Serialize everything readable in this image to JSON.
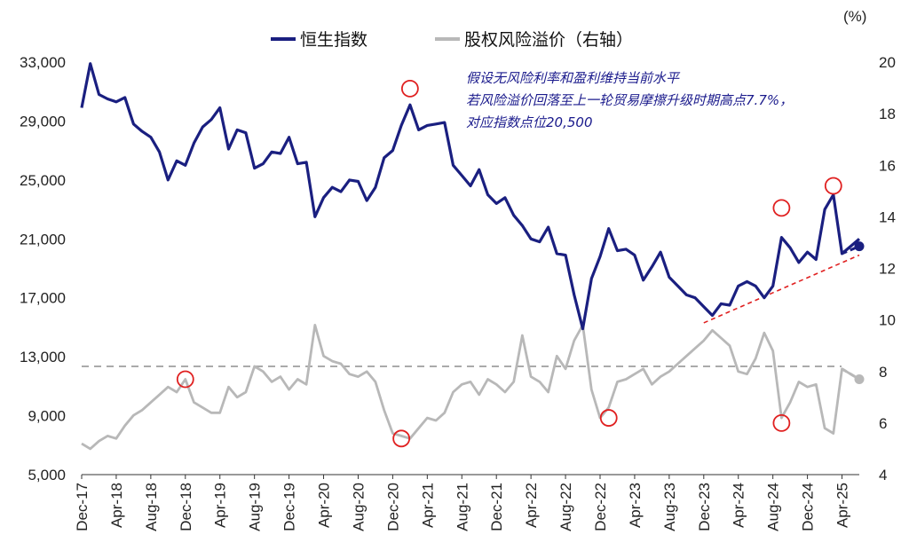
{
  "chart_data": {
    "type": "line",
    "right_unit": "(%)",
    "legend": [
      "恒生指数",
      "股权风险溢价（右轴）"
    ],
    "series": [
      {
        "name": "恒生指数",
        "axis": "left",
        "color": "#1a1f80",
        "x": [
          "2017-12",
          "2018-01",
          "2018-02",
          "2018-03",
          "2018-04",
          "2018-05",
          "2018-06",
          "2018-07",
          "2018-08",
          "2018-09",
          "2018-10",
          "2018-11",
          "2018-12",
          "2019-01",
          "2019-02",
          "2019-03",
          "2019-04",
          "2019-05",
          "2019-06",
          "2019-07",
          "2019-08",
          "2019-09",
          "2019-10",
          "2019-11",
          "2019-12",
          "2020-01",
          "2020-02",
          "2020-03",
          "2020-04",
          "2020-05",
          "2020-06",
          "2020-07",
          "2020-08",
          "2020-09",
          "2020-10",
          "2020-11",
          "2020-12",
          "2021-01",
          "2021-02",
          "2021-03",
          "2021-04",
          "2021-05",
          "2021-06",
          "2021-07",
          "2021-08",
          "2021-09",
          "2021-10",
          "2021-11",
          "2021-12",
          "2022-01",
          "2022-02",
          "2022-03",
          "2022-04",
          "2022-05",
          "2022-06",
          "2022-07",
          "2022-08",
          "2022-09",
          "2022-10",
          "2022-11",
          "2022-12",
          "2023-01",
          "2023-02",
          "2023-03",
          "2023-04",
          "2023-05",
          "2023-06",
          "2023-07",
          "2023-08",
          "2023-09",
          "2023-10",
          "2023-11",
          "2023-12",
          "2024-01",
          "2024-02",
          "2024-03",
          "2024-04",
          "2024-05",
          "2024-06",
          "2024-07",
          "2024-08",
          "2024-09",
          "2024-10",
          "2024-11",
          "2024-12",
          "2025-01",
          "2025-02",
          "2025-03",
          "2025-04",
          "2025-05",
          "2025-06"
        ],
        "values": [
          29900,
          32900,
          30800,
          30500,
          30300,
          30600,
          28800,
          28300,
          27900,
          26900,
          25000,
          26300,
          26000,
          27500,
          28600,
          29100,
          29900,
          27100,
          28400,
          28200,
          25800,
          26100,
          26900,
          26800,
          27900,
          26100,
          26200,
          22500,
          23800,
          24500,
          24200,
          25000,
          24900,
          23600,
          24500,
          26500,
          27000,
          28700,
          30100,
          28400,
          28700,
          28800,
          28900,
          26000,
          25300,
          24600,
          25700,
          24000,
          23400,
          23800,
          22600,
          21900,
          21000,
          20800,
          21800,
          20000,
          19900,
          17200,
          14900,
          18300,
          19800,
          21700,
          20200,
          20300,
          19900,
          18200,
          19100,
          20100,
          18400,
          17800,
          17200,
          17000,
          16400,
          15800,
          16600,
          16500,
          17800,
          18100,
          17800,
          17000,
          17800,
          21100,
          20400,
          19400,
          20100,
          19600,
          23000,
          24000,
          20000,
          20500,
          21000
        ]
      },
      {
        "name": "股权风险溢价（右轴）",
        "axis": "right",
        "color": "#b8b8b8",
        "x": [
          "2017-12",
          "2018-01",
          "2018-02",
          "2018-03",
          "2018-04",
          "2018-05",
          "2018-06",
          "2018-07",
          "2018-08",
          "2018-09",
          "2018-10",
          "2018-11",
          "2018-12",
          "2019-01",
          "2019-02",
          "2019-03",
          "2019-04",
          "2019-05",
          "2019-06",
          "2019-07",
          "2019-08",
          "2019-09",
          "2019-10",
          "2019-11",
          "2019-12",
          "2020-01",
          "2020-02",
          "2020-03",
          "2020-04",
          "2020-05",
          "2020-06",
          "2020-07",
          "2020-08",
          "2020-09",
          "2020-10",
          "2020-11",
          "2020-12",
          "2021-01",
          "2021-02",
          "2021-03",
          "2021-04",
          "2021-05",
          "2021-06",
          "2021-07",
          "2021-08",
          "2021-09",
          "2021-10",
          "2021-11",
          "2021-12",
          "2022-01",
          "2022-02",
          "2022-03",
          "2022-04",
          "2022-05",
          "2022-06",
          "2022-07",
          "2022-08",
          "2022-09",
          "2022-10",
          "2022-11",
          "2022-12",
          "2023-01",
          "2023-02",
          "2023-03",
          "2023-04",
          "2023-05",
          "2023-06",
          "2023-07",
          "2023-08",
          "2023-09",
          "2023-10",
          "2023-11",
          "2023-12",
          "2024-01",
          "2024-02",
          "2024-03",
          "2024-04",
          "2024-05",
          "2024-06",
          "2024-07",
          "2024-08",
          "2024-09",
          "2024-10",
          "2024-11",
          "2024-12",
          "2025-01",
          "2025-02",
          "2025-03",
          "2025-04",
          "2025-05",
          "2025-06"
        ],
        "values": [
          5.2,
          5.0,
          5.3,
          5.5,
          5.4,
          5.9,
          6.3,
          6.5,
          6.8,
          7.1,
          7.4,
          7.2,
          7.7,
          6.8,
          6.6,
          6.4,
          6.4,
          7.4,
          7.0,
          7.2,
          8.2,
          8.0,
          7.6,
          7.8,
          7.3,
          7.7,
          7.5,
          9.8,
          8.6,
          8.4,
          8.3,
          7.9,
          7.8,
          8.0,
          7.6,
          6.5,
          5.6,
          5.5,
          5.4,
          5.8,
          6.2,
          6.1,
          6.4,
          7.2,
          7.5,
          7.6,
          7.1,
          7.7,
          7.5,
          7.2,
          7.6,
          9.4,
          7.8,
          7.6,
          7.2,
          8.6,
          8.1,
          9.2,
          9.8,
          7.3,
          6.2,
          6.6,
          7.6,
          7.7,
          7.9,
          8.1,
          7.5,
          7.8,
          8.0,
          8.3,
          8.6,
          8.9,
          9.2,
          9.6,
          9.3,
          9.0,
          8.0,
          7.9,
          8.5,
          9.5,
          8.8,
          6.2,
          6.8,
          7.6,
          7.4,
          7.5,
          5.8,
          5.6,
          8.1,
          7.9,
          7.7
        ]
      }
    ],
    "left_axis": {
      "ticks": [
        "5,000",
        "9,000",
        "13,000",
        "17,000",
        "21,000",
        "25,000",
        "29,000",
        "33,000"
      ],
      "ylim": [
        5000,
        33000
      ]
    },
    "right_axis": {
      "ticks": [
        "4",
        "6",
        "8",
        "10",
        "12",
        "14",
        "16",
        "18",
        "20"
      ],
      "ylim": [
        4,
        20
      ]
    },
    "x_ticks": [
      "Dec-17",
      "Apr-18",
      "Aug-18",
      "Dec-18",
      "Apr-19",
      "Aug-19",
      "Dec-19",
      "Apr-20",
      "Aug-20",
      "Dec-20",
      "Apr-21",
      "Aug-21",
      "Dec-21",
      "Apr-22",
      "Aug-22",
      "Dec-22",
      "Apr-23",
      "Aug-23",
      "Dec-23",
      "Apr-24",
      "Aug-24",
      "Dec-24",
      "Apr-25"
    ],
    "reference_line": {
      "value": 8.2,
      "axis": "right",
      "style": "dashed",
      "color": "#aaaaaa"
    },
    "trend_line": {
      "from": [
        "2023-12",
        15300
      ],
      "to": [
        "2025-06",
        19900
      ],
      "axis": "left",
      "style": "dashed",
      "color": "#e02020"
    },
    "projections": [
      {
        "series": "恒生指数",
        "from": [
          "2025-04",
          20000
        ],
        "to": [
          "2025-06",
          20500
        ],
        "axis": "left"
      },
      {
        "series": "股权风险溢价（右轴）",
        "from": [
          "2025-04",
          8.1
        ],
        "to": [
          "2025-06",
          7.7
        ],
        "axis": "right"
      }
    ],
    "highlight_circles": [
      {
        "x": "2021-02",
        "y": 31200,
        "axis": "left"
      },
      {
        "x": "2024-09",
        "y": 23100,
        "axis": "left"
      },
      {
        "x": "2025-03",
        "y": 24600,
        "axis": "left"
      },
      {
        "x": "2018-12",
        "y": 7.7,
        "axis": "right"
      },
      {
        "x": "2021-01",
        "y": 5.4,
        "axis": "right"
      },
      {
        "x": "2023-01",
        "y": 6.2,
        "axis": "right"
      },
      {
        "x": "2024-09",
        "y": 6.0,
        "axis": "right"
      }
    ],
    "annotation": [
      "假设无风险利率和盈利维持当前水平",
      "若风险溢价回落至上一轮贸易摩擦升级时期高点7.7%，",
      "对应指数点位20,500"
    ]
  }
}
